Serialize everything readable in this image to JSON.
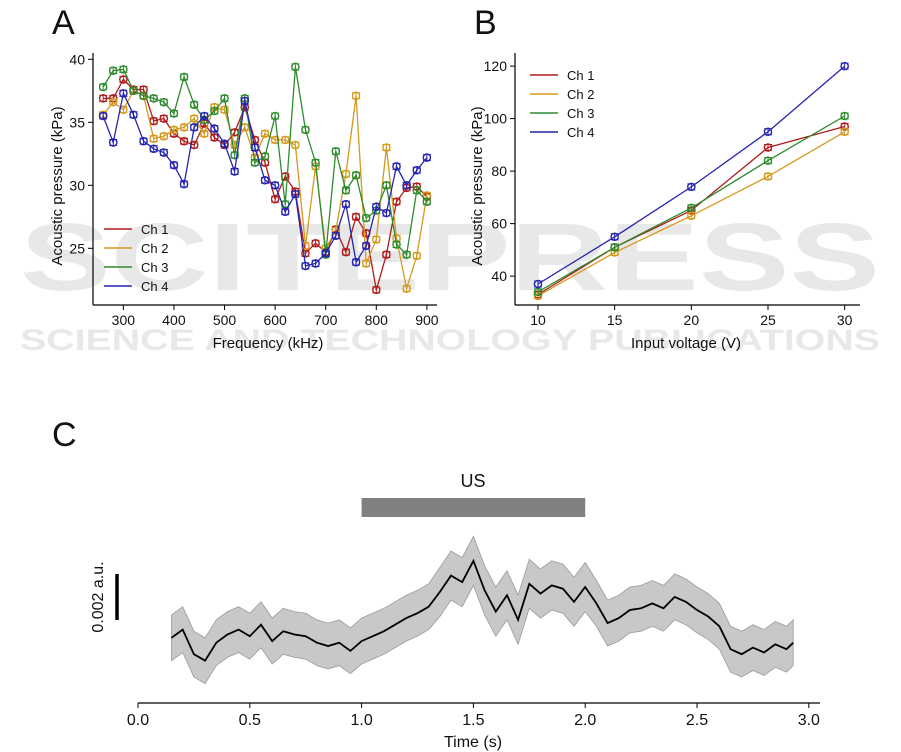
{
  "panel_labels": {
    "a": "A",
    "b": "B",
    "c": "C"
  },
  "watermark": {
    "line1": "SCITEPRESS",
    "line2": "SCIENCE AND TECHNOLOGY PUBLICATIONS"
  },
  "colors": {
    "ch1": "#b01c1c",
    "ch2": "#d49a1e",
    "ch3": "#2e8b2e",
    "ch4": "#2424b0",
    "band": "#c8c8c8",
    "us_bar": "#808080"
  },
  "chart_data": [
    {
      "type": "line",
      "panel": "A",
      "xlabel": "Frequency (kHz)",
      "ylabel": "Acoustic pressure (kPa)",
      "xlim": [
        240,
        920
      ],
      "ylim": [
        20.5,
        40.5
      ],
      "xticks": [
        300,
        400,
        500,
        600,
        700,
        800,
        900
      ],
      "yticks": [
        25,
        30,
        35,
        40
      ],
      "legend_position": "bottom-left",
      "x": [
        260,
        280,
        300,
        320,
        340,
        360,
        380,
        400,
        420,
        440,
        460,
        480,
        500,
        520,
        540,
        560,
        580,
        600,
        620,
        640,
        660,
        680,
        700,
        720,
        740,
        760,
        780,
        800,
        820,
        840,
        860,
        880,
        900
      ],
      "series": [
        {
          "name": "Ch 1",
          "values": [
            36.9,
            36.9,
            38.4,
            37.6,
            37.6,
            35.1,
            35.3,
            34.1,
            33.5,
            33.2,
            34.9,
            33.8,
            33.2,
            34.2,
            36.2,
            33.6,
            31.8,
            28.9,
            30.7,
            29.5,
            24.6,
            25.4,
            24.7,
            26.5,
            24.7,
            27.5,
            26.2,
            21.7,
            24.5,
            28.7,
            29.8,
            29.9,
            29.1
          ]
        },
        {
          "name": "Ch 2",
          "values": [
            35.6,
            36.6,
            36.0,
            37.5,
            37.1,
            33.7,
            33.9,
            34.4,
            34.6,
            35.3,
            34.1,
            36.2,
            36.0,
            33.2,
            34.6,
            32.2,
            34.1,
            33.6,
            33.6,
            33.2,
            25.2,
            31.5,
            25.0,
            26.4,
            30.9,
            37.1,
            23.8,
            25.7,
            33.0,
            25.8,
            21.8,
            24.4,
            29.2
          ]
        },
        {
          "name": "Ch 3",
          "values": [
            37.8,
            39.1,
            39.2,
            37.5,
            37.1,
            36.9,
            36.6,
            35.7,
            38.6,
            36.4,
            35.2,
            35.9,
            36.9,
            32.4,
            36.9,
            31.8,
            32.3,
            35.5,
            28.5,
            39.4,
            34.4,
            31.8,
            24.5,
            32.7,
            29.6,
            30.8,
            27.4,
            28.0,
            30.0,
            25.3,
            24.5,
            29.6,
            28.7
          ]
        },
        {
          "name": "Ch 4",
          "values": [
            35.5,
            33.4,
            37.3,
            35.6,
            33.5,
            32.9,
            32.6,
            31.6,
            30.1,
            34.6,
            35.5,
            34.5,
            33.3,
            31.1,
            36.7,
            33.0,
            30.4,
            30.0,
            27.9,
            29.3,
            23.6,
            23.8,
            24.6,
            26.0,
            28.5,
            23.9,
            25.2,
            28.3,
            27.8,
            31.5,
            30.0,
            31.2,
            32.2
          ]
        }
      ]
    },
    {
      "type": "line",
      "panel": "B",
      "xlabel": "Input voltage (V)",
      "ylabel": "Acoustic pressure (kPa)",
      "xlim": [
        8.5,
        31
      ],
      "ylim": [
        29,
        125
      ],
      "xticks": [
        10,
        15,
        20,
        25,
        30
      ],
      "yticks": [
        40,
        60,
        80,
        100,
        120
      ],
      "legend_position": "top-left",
      "x": [
        10,
        15,
        20,
        25,
        30
      ],
      "series": [
        {
          "name": "Ch 1",
          "values": [
            33,
            51,
            65,
            89,
            97
          ]
        },
        {
          "name": "Ch 2",
          "values": [
            32.5,
            49,
            63,
            78,
            95
          ]
        },
        {
          "name": "Ch 3",
          "values": [
            34,
            51,
            66,
            84,
            101
          ]
        },
        {
          "name": "Ch 4",
          "values": [
            37,
            55,
            74,
            95,
            120
          ]
        }
      ]
    },
    {
      "type": "area",
      "panel": "C",
      "xlabel": "Time (s)",
      "xlim": [
        0.0,
        3.05
      ],
      "xticks": [
        0.0,
        0.5,
        1.0,
        1.5,
        2.0,
        2.5,
        3.0
      ],
      "xtick_labels": [
        "0.0",
        "0.5",
        "1.0",
        "1.5",
        "2.0",
        "2.5",
        "3.0"
      ],
      "scale_bar_label": "0.002 a.u.",
      "scale_bar_value": 0.002,
      "ylim": [
        -0.0038,
        0.0075
      ],
      "stimulus": {
        "label": "US",
        "start": 1.0,
        "end": 2.0
      },
      "x": [
        0.15,
        0.2,
        0.25,
        0.3,
        0.35,
        0.4,
        0.45,
        0.5,
        0.55,
        0.6,
        0.65,
        0.7,
        0.75,
        0.8,
        0.85,
        0.9,
        0.95,
        1.0,
        1.05,
        1.1,
        1.15,
        1.2,
        1.25,
        1.3,
        1.35,
        1.4,
        1.45,
        1.5,
        1.55,
        1.6,
        1.65,
        1.7,
        1.75,
        1.8,
        1.85,
        1.9,
        1.95,
        2.0,
        2.05,
        2.1,
        2.15,
        2.2,
        2.25,
        2.3,
        2.35,
        2.4,
        2.45,
        2.5,
        2.55,
        2.6,
        2.65,
        2.7,
        2.75,
        2.8,
        2.85,
        2.9,
        2.93
      ],
      "mean": [
        0.0,
        0.0005,
        -0.001,
        -0.0014,
        -0.0003,
        0.0002,
        0.0005,
        0.0001,
        0.0008,
        -0.0002,
        0.0004,
        0.0002,
        0.0001,
        -0.0003,
        -0.0005,
        -0.0003,
        -0.0008,
        -0.0002,
        0.0001,
        0.0004,
        0.0008,
        0.0012,
        0.0015,
        0.0019,
        0.0028,
        0.0038,
        0.0034,
        0.0047,
        0.0029,
        0.0016,
        0.0026,
        0.0011,
        0.0033,
        0.0027,
        0.0032,
        0.003,
        0.0022,
        0.0031,
        0.0021,
        0.0009,
        0.0012,
        0.0017,
        0.0018,
        0.0021,
        0.0018,
        0.0025,
        0.0022,
        0.0017,
        0.0013,
        0.0007,
        -0.0007,
        -0.001,
        -0.0006,
        -0.0009,
        -0.0004,
        -0.0007,
        -0.0003
      ],
      "sd": [
        0.0014,
        0.0014,
        0.0014,
        0.0014,
        0.0014,
        0.0014,
        0.0014,
        0.0014,
        0.0014,
        0.0014,
        0.0014,
        0.0014,
        0.0014,
        0.0014,
        0.0014,
        0.0014,
        0.0014,
        0.0014,
        0.0014,
        0.0014,
        0.0014,
        0.0014,
        0.0014,
        0.0014,
        0.0015,
        0.0015,
        0.0015,
        0.0015,
        0.0015,
        0.0015,
        0.0015,
        0.0015,
        0.0015,
        0.0015,
        0.0015,
        0.0015,
        0.0015,
        0.0015,
        0.0014,
        0.0014,
        0.0014,
        0.0014,
        0.0014,
        0.0014,
        0.0014,
        0.0014,
        0.0014,
        0.0014,
        0.0014,
        0.0014,
        0.0014,
        0.0014,
        0.0014,
        0.0014,
        0.0014,
        0.0014,
        0.0014
      ]
    }
  ]
}
